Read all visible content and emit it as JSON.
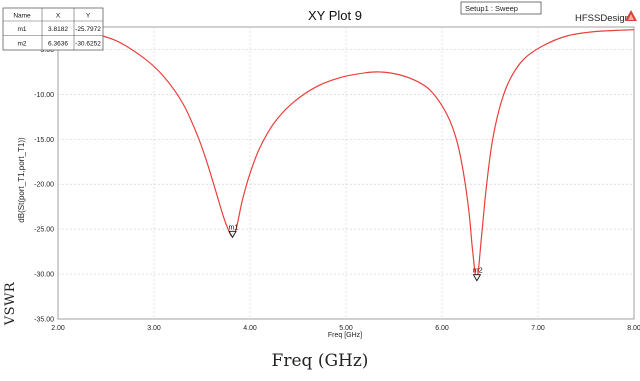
{
  "chart_data": {
    "type": "line",
    "title": "XY Plot 9",
    "design_label": "HFSSDesign1",
    "setup_label": "Setup1 : Sweep",
    "xlabel": "Freq [GHz]",
    "ylabel": "dB(St(port_T1,port_T1))",
    "xlim": [
      2.0,
      8.0
    ],
    "ylim": [
      -35.0,
      -2.5
    ],
    "x_ticks": [
      "2.00",
      "3.00",
      "4.00",
      "5.00",
      "6.00",
      "7.00",
      "8.00"
    ],
    "y_ticks": [
      "-5.00",
      "-10.00",
      "-15.00",
      "-20.00",
      "-25.00",
      "-30.00",
      "-35.00"
    ],
    "grid": true,
    "series": [
      {
        "color": "#e8403c",
        "x": [
          2.0,
          2.3,
          2.6,
          2.9,
          3.1,
          3.3,
          3.45,
          3.55,
          3.65,
          3.72,
          3.78,
          3.8182,
          3.86,
          3.92,
          4.0,
          4.1,
          4.25,
          4.45,
          4.7,
          4.95,
          5.2,
          5.35,
          5.55,
          5.75,
          5.9,
          6.05,
          6.15,
          6.22,
          6.28,
          6.32,
          6.3636,
          6.41,
          6.46,
          6.52,
          6.6,
          6.7,
          6.85,
          7.05,
          7.3,
          7.6,
          8.0
        ],
        "y": [
          -2.6,
          -3.1,
          -4.0,
          -6.0,
          -8.0,
          -11.0,
          -14.5,
          -17.5,
          -21.0,
          -23.5,
          -25.2,
          -25.7972,
          -24.8,
          -21.8,
          -18.8,
          -16.0,
          -13.2,
          -10.9,
          -9.1,
          -8.1,
          -7.6,
          -7.5,
          -7.8,
          -8.6,
          -9.8,
          -12.2,
          -15.0,
          -18.5,
          -23.0,
          -27.5,
          -30.6252,
          -26.0,
          -20.5,
          -15.5,
          -11.5,
          -8.5,
          -6.1,
          -4.6,
          -3.5,
          -3.0,
          -2.8
        ]
      }
    ],
    "markers": [
      {
        "name": "m1",
        "x": 3.8182,
        "y": -25.7972
      },
      {
        "name": "m2",
        "x": 6.3636,
        "y": -30.6252
      }
    ],
    "marker_table": {
      "headers": [
        "Name",
        "X",
        "Y"
      ],
      "rows": [
        [
          "m1",
          "3.8182",
          "-25.7972"
        ],
        [
          "m2",
          "6.3636",
          "-30.6252"
        ]
      ]
    }
  },
  "caption": "Freq (GHz)",
  "side_text": "VSWR"
}
